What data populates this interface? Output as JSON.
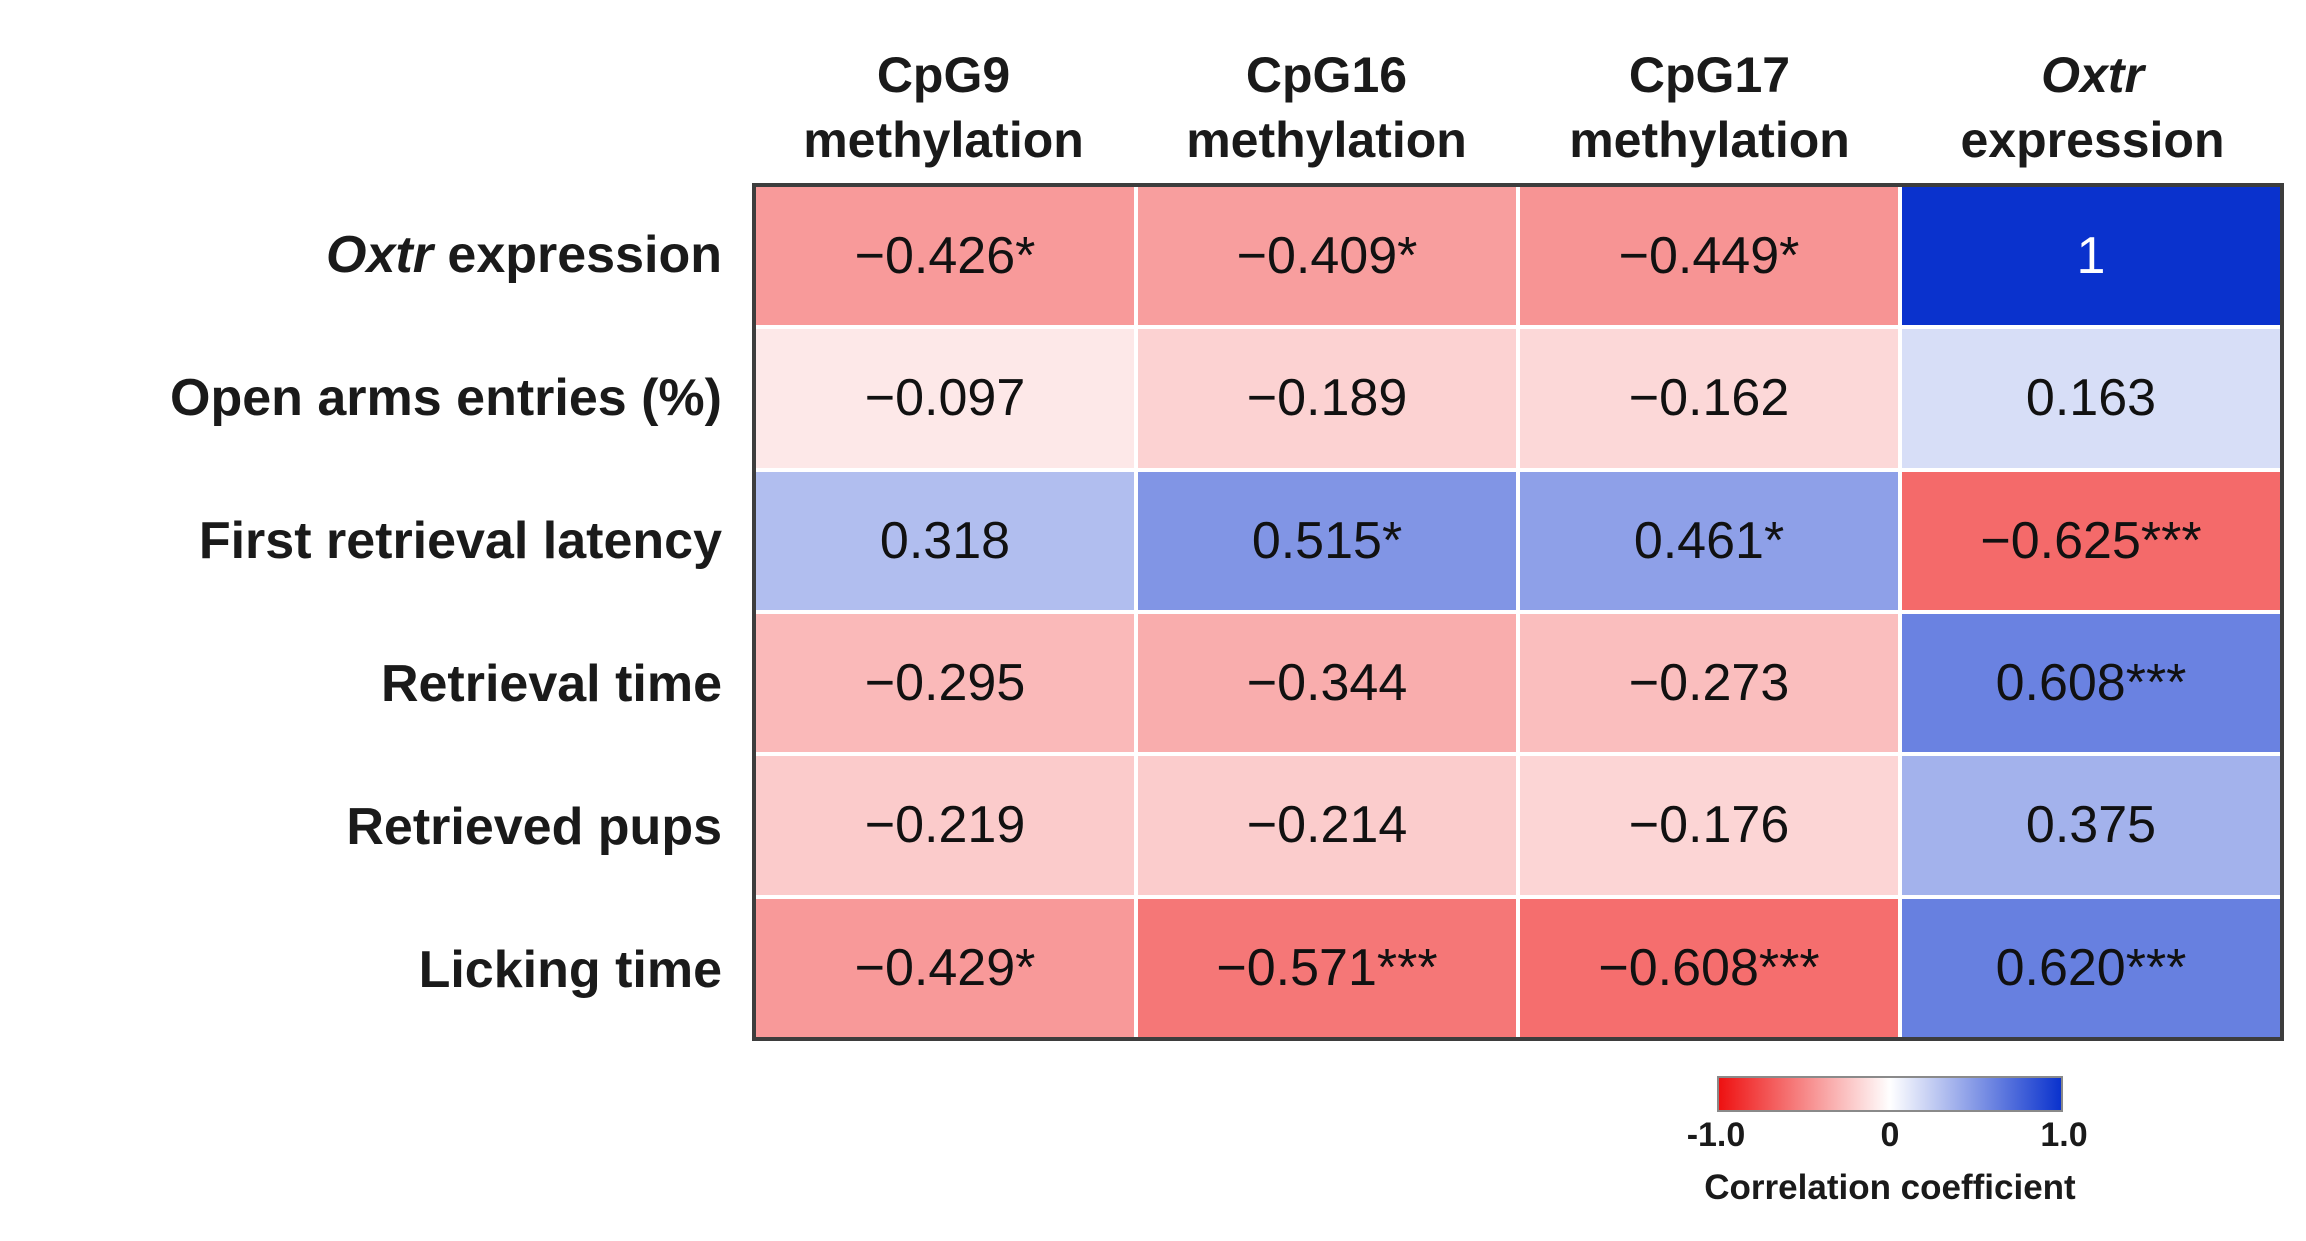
{
  "chart_data": {
    "type": "heatmap",
    "title": "",
    "col_headers": [
      {
        "line1": "CpG9",
        "line2": "methylation",
        "italic_line1": false
      },
      {
        "line1": "CpG16",
        "line2": "methylation",
        "italic_line1": false
      },
      {
        "line1": "CpG17",
        "line2": "methylation",
        "italic_line1": false
      },
      {
        "line1": "Oxtr",
        "line2": "expression",
        "italic_line1": true
      }
    ],
    "row_headers": [
      {
        "italic": "Oxtr",
        "text": " expression"
      },
      {
        "italic": "",
        "text": "Open arms entries (%)"
      },
      {
        "italic": "",
        "text": "First retrieval latency"
      },
      {
        "italic": "",
        "text": "Retrieval time"
      },
      {
        "italic": "",
        "text": "Retrieved pups"
      },
      {
        "italic": "",
        "text": "Licking time"
      }
    ],
    "cells": [
      [
        {
          "label": "−0.426*",
          "v": -0.426
        },
        {
          "label": "−0.409*",
          "v": -0.409
        },
        {
          "label": "−0.449*",
          "v": -0.449
        },
        {
          "label": "1",
          "v": 1.0
        }
      ],
      [
        {
          "label": "−0.097",
          "v": -0.097
        },
        {
          "label": "−0.189",
          "v": -0.189
        },
        {
          "label": "−0.162",
          "v": -0.162
        },
        {
          "label": "0.163",
          "v": 0.163
        }
      ],
      [
        {
          "label": "0.318",
          "v": 0.318
        },
        {
          "label": "0.515*",
          "v": 0.515
        },
        {
          "label": "0.461*",
          "v": 0.461
        },
        {
          "label": "−0.625***",
          "v": -0.625
        }
      ],
      [
        {
          "label": "−0.295",
          "v": -0.295
        },
        {
          "label": "−0.344",
          "v": -0.344
        },
        {
          "label": "−0.273",
          "v": -0.273
        },
        {
          "label": "0.608***",
          "v": 0.608
        }
      ],
      [
        {
          "label": "−0.219",
          "v": -0.219
        },
        {
          "label": "−0.214",
          "v": -0.214
        },
        {
          "label": "−0.176",
          "v": -0.176
        },
        {
          "label": "0.375",
          "v": 0.375
        }
      ],
      [
        {
          "label": "−0.429*",
          "v": -0.429
        },
        {
          "label": "−0.571***",
          "v": -0.571
        },
        {
          "label": "−0.608***",
          "v": -0.608
        },
        {
          "label": "0.620***",
          "v": 0.62
        }
      ]
    ],
    "colorbar": {
      "min": -1.0,
      "max": 1.0,
      "min_color": "#EE1111",
      "mid_color": "#FFFFFF",
      "max_color": "#0A32CD",
      "ticks": [
        "-1.0",
        "0",
        "1.0"
      ],
      "title": "Correlation coefficient"
    },
    "layout": {
      "grid": "white gridlines, dark outer border",
      "legend_position": "bottom-right",
      "cell_text_color_high_value": "#FFFFFF"
    }
  }
}
